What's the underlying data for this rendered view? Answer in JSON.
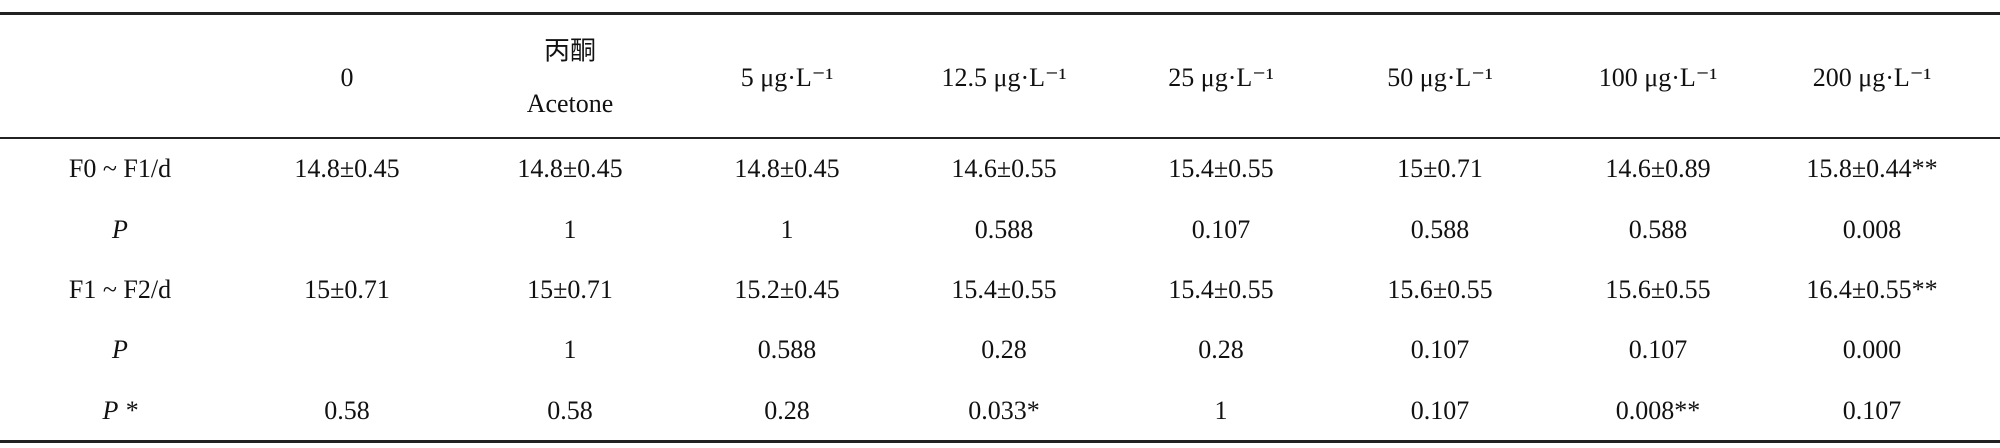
{
  "table": {
    "header": [
      null,
      "0",
      [
        "丙酮",
        "Acetone"
      ],
      "5 μg·L⁻¹",
      "12.5 μg·L⁻¹",
      "25 μg·L⁻¹",
      "50 μg·L⁻¹",
      "100 μg·L⁻¹",
      "200 μg·L⁻¹"
    ],
    "rows": [
      [
        "F0 ~ F1/d",
        "14.8±0.45",
        "14.8±0.45",
        "14.8±0.45",
        "14.6±0.55",
        "15.4±0.55",
        "15±0.71",
        "14.6±0.89",
        "15.8±0.44**"
      ],
      [
        "P",
        null,
        "1",
        "1",
        "0.588",
        "0.107",
        "0.588",
        "0.588",
        "0.008"
      ],
      [
        "F1 ~ F2/d",
        "15±0.71",
        "15±0.71",
        "15.2±0.45",
        "15.4±0.55",
        "15.4±0.55",
        "15.6±0.55",
        "15.6±0.55",
        "16.4±0.55**"
      ],
      [
        "P",
        null,
        "1",
        "0.588",
        "0.28",
        "0.28",
        "0.107",
        "0.107",
        "0.000"
      ],
      [
        "P *",
        "0.58",
        "0.58",
        "0.28",
        "0.033*",
        "1",
        "0.107",
        "0.008**",
        "0.107"
      ]
    ]
  }
}
